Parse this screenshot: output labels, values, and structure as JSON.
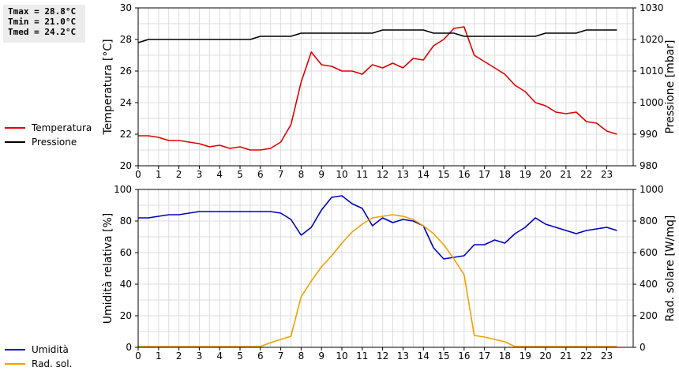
{
  "stats": [
    "Tmax = 28.8°C",
    "Tmin = 21.0°C",
    "Tmed = 24.2°C"
  ],
  "legends": [
    [
      {
        "name": "Temperatura",
        "color": "#e00000"
      },
      {
        "name": "Pressione",
        "color": "#000000"
      }
    ],
    [
      {
        "name": "Umidità",
        "color": "#0000c0"
      },
      {
        "name": "Rad. sol.",
        "color": "#f0a000"
      }
    ]
  ],
  "chart_data": [
    {
      "type": "line",
      "x_ticks": [
        "0",
        "1",
        "2",
        "3",
        "4",
        "5",
        "6",
        "7",
        "8",
        "9",
        "10",
        "11",
        "12",
        "13",
        "14",
        "15",
        "16",
        "17",
        "18",
        "19",
        "20",
        "21",
        "22",
        "23"
      ],
      "xlim": [
        0,
        24.3
      ],
      "grid": true,
      "y_left": {
        "label": "Temperatura [°C]",
        "ylim": [
          20,
          30
        ],
        "ticks": [
          "20",
          "22",
          "24",
          "26",
          "28",
          "30"
        ]
      },
      "y_right": {
        "label": "Pressione [mbar]",
        "ylim": [
          980,
          1030
        ],
        "ticks": [
          "980",
          "990",
          "1000",
          "1010",
          "1020",
          "1030"
        ]
      },
      "series": [
        {
          "name": "Temperatura",
          "axis": "left",
          "color": "#e00000",
          "x": [
            0,
            0.5,
            1,
            1.5,
            2,
            2.5,
            3,
            3.5,
            4,
            4.5,
            5,
            5.5,
            6,
            6.5,
            7,
            7.5,
            8,
            8.5,
            9,
            9.5,
            10,
            10.5,
            11,
            11.5,
            12,
            12.5,
            13,
            13.5,
            14,
            14.5,
            15,
            15.5,
            16,
            16.5,
            17,
            17.5,
            18,
            18.5,
            19,
            19.5,
            20,
            20.5,
            21,
            21.5,
            22,
            22.5,
            23,
            23.5
          ],
          "y": [
            21.9,
            21.9,
            21.8,
            21.6,
            21.6,
            21.5,
            21.4,
            21.2,
            21.3,
            21.1,
            21.2,
            21.0,
            21.0,
            21.1,
            21.5,
            22.6,
            25.3,
            27.2,
            26.4,
            26.3,
            26.0,
            26.0,
            25.8,
            26.4,
            26.2,
            26.5,
            26.2,
            26.8,
            26.7,
            27.6,
            28.0,
            28.7,
            28.8,
            27.0,
            26.6,
            26.2,
            25.8,
            25.1,
            24.7,
            24.0,
            23.8,
            23.4,
            23.3,
            23.4,
            22.8,
            22.7,
            22.2,
            22.0
          ]
        },
        {
          "name": "Pressione",
          "axis": "right",
          "color": "#000000",
          "x": [
            0,
            0.5,
            1,
            1.5,
            2,
            2.5,
            3,
            3.5,
            4,
            4.5,
            5,
            5.5,
            6,
            6.5,
            7,
            7.5,
            8,
            8.5,
            9,
            9.5,
            10,
            10.5,
            11,
            11.5,
            12,
            12.5,
            13,
            13.5,
            14,
            14.5,
            15,
            15.5,
            16,
            16.5,
            17,
            17.5,
            18,
            18.5,
            19,
            19.5,
            20,
            20.5,
            21,
            21.5,
            22,
            22.5,
            23,
            23.5
          ],
          "y": [
            1019,
            1020,
            1020,
            1020,
            1020,
            1020,
            1020,
            1020,
            1020,
            1020,
            1020,
            1020,
            1021,
            1021,
            1021,
            1021,
            1022,
            1022,
            1022,
            1022,
            1022,
            1022,
            1022,
            1022,
            1023,
            1023,
            1023,
            1023,
            1023,
            1022,
            1022,
            1022,
            1021,
            1021,
            1021,
            1021,
            1021,
            1021,
            1021,
            1021,
            1022,
            1022,
            1022,
            1022,
            1023,
            1023,
            1023,
            1023
          ]
        }
      ]
    },
    {
      "type": "line",
      "x_ticks": [
        "0",
        "1",
        "2",
        "3",
        "4",
        "5",
        "6",
        "7",
        "8",
        "9",
        "10",
        "11",
        "12",
        "13",
        "14",
        "15",
        "16",
        "17",
        "18",
        "19",
        "20",
        "21",
        "22",
        "23"
      ],
      "xlim": [
        0,
        24.3
      ],
      "grid": true,
      "y_left": {
        "label": "Umidità relativa [%]",
        "ylim": [
          0,
          100
        ],
        "ticks": [
          "0",
          "20",
          "40",
          "60",
          "80",
          "100"
        ]
      },
      "y_right": {
        "label": "Rad. solare [W/mq]",
        "ylim": [
          0,
          1000
        ],
        "ticks": [
          "0",
          "200",
          "400",
          "600",
          "800",
          "1000"
        ]
      },
      "series": [
        {
          "name": "Umidità",
          "axis": "left",
          "color": "#0000c0",
          "x": [
            0,
            0.5,
            1,
            1.5,
            2,
            2.5,
            3,
            3.5,
            4,
            4.5,
            5,
            5.5,
            6,
            6.5,
            7,
            7.5,
            8,
            8.5,
            9,
            9.5,
            10,
            10.5,
            11,
            11.5,
            12,
            12.5,
            13,
            13.5,
            14,
            14.5,
            15,
            15.5,
            16,
            16.5,
            17,
            17.5,
            18,
            18.5,
            19,
            19.5,
            20,
            20.5,
            21,
            21.5,
            22,
            22.5,
            23,
            23.5
          ],
          "y": [
            82,
            82,
            83,
            84,
            84,
            85,
            86,
            86,
            86,
            86,
            86,
            86,
            86,
            86,
            85,
            81,
            71,
            76,
            87,
            95,
            96,
            91,
            88,
            77,
            82,
            79,
            81,
            80,
            77,
            63,
            56,
            57,
            58,
            65,
            65,
            68,
            66,
            72,
            76,
            82,
            78,
            76,
            74,
            72,
            74,
            75,
            76,
            74
          ]
        },
        {
          "name": "Rad. sol.",
          "axis": "right",
          "color": "#f0a000",
          "x": [
            0,
            0.5,
            1,
            1.5,
            2,
            2.5,
            3,
            3.5,
            4,
            4.5,
            5,
            5.5,
            6,
            6.5,
            7,
            7.5,
            8,
            8.5,
            9,
            9.5,
            10,
            10.5,
            11,
            11.5,
            12,
            12.5,
            13,
            13.5,
            14,
            14.5,
            15,
            15.5,
            16,
            16.5,
            17,
            17.5,
            18,
            18.5,
            19,
            19.5,
            20,
            20.5,
            21,
            21.5,
            22,
            22.5,
            23,
            23.5
          ],
          "y": [
            5,
            5,
            5,
            5,
            5,
            5,
            5,
            5,
            5,
            5,
            5,
            5,
            5,
            30,
            50,
            70,
            320,
            420,
            510,
            580,
            660,
            730,
            780,
            820,
            830,
            840,
            830,
            810,
            770,
            720,
            650,
            560,
            460,
            75,
            65,
            50,
            35,
            5,
            5,
            5,
            5,
            5,
            5,
            5,
            5,
            5,
            5,
            5
          ]
        }
      ]
    }
  ]
}
